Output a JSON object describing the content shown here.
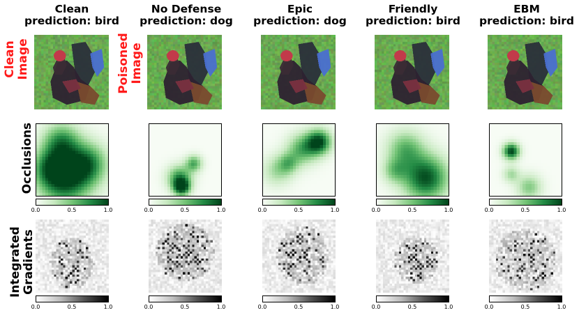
{
  "columns": [
    {
      "name": "Clean",
      "prediction": "prediction: bird"
    },
    {
      "name": "No Defense",
      "prediction": "prediction: dog"
    },
    {
      "name": "Epic",
      "prediction": "prediction: dog"
    },
    {
      "name": "Friendly",
      "prediction": "prediction: bird"
    },
    {
      "name": "EBM",
      "prediction": "prediction: bird"
    }
  ],
  "row_labels": {
    "clean_image": [
      "Clean",
      "Image"
    ],
    "poisoned_image": [
      "Poisoned",
      "Image"
    ],
    "occlusions": "Occlusions",
    "integrated_gradients": [
      "Integrated",
      "Gradients"
    ]
  },
  "colorbar_ticks": [
    "0.0",
    "0.5",
    "1.0"
  ],
  "colors": {
    "label_red": "#ff1a1a",
    "cmap_green_high": "#00441b",
    "cmap_gray_high": "#000000"
  }
}
